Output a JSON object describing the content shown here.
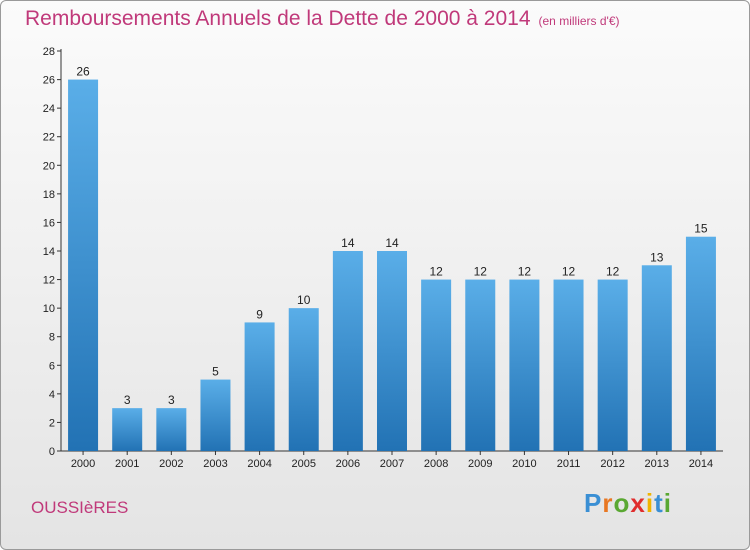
{
  "header": {
    "title": "Remboursements Annuels de la Dette de 2000 à 2014",
    "subtitle": "(en milliers d'€)"
  },
  "footer": {
    "commune": "OUSSIèRES",
    "logo_letters": [
      "P",
      "r",
      "o",
      "x",
      "i",
      "t",
      "i"
    ],
    "logo_colors": [
      "#3a8fd4",
      "#e87722",
      "#5aa832",
      "#e02d2d",
      "#f0b400",
      "#3a8fd4",
      "#5aa832"
    ]
  },
  "colors": {
    "bar_light": "#5aaee8",
    "bar_dark": "#2272b4",
    "axis": "#333333",
    "grid": "#cccccc"
  },
  "chart_data": {
    "type": "bar",
    "title": "Remboursements Annuels de la Dette de 2000 à 2014",
    "subtitle": "(en milliers d'€)",
    "categories": [
      "2000",
      "2001",
      "2002",
      "2003",
      "2004",
      "2005",
      "2006",
      "2007",
      "2008",
      "2009",
      "2010",
      "2011",
      "2012",
      "2013",
      "2014"
    ],
    "values": [
      26,
      3,
      3,
      5,
      9,
      10,
      14,
      14,
      12,
      12,
      12,
      12,
      12,
      13,
      15
    ],
    "ylim": [
      0,
      28
    ],
    "yticks": [
      0,
      2,
      4,
      6,
      8,
      10,
      12,
      14,
      16,
      18,
      20,
      22,
      24,
      26,
      28
    ],
    "xlabel": "",
    "ylabel": "",
    "grid": false,
    "data_labels": true
  }
}
